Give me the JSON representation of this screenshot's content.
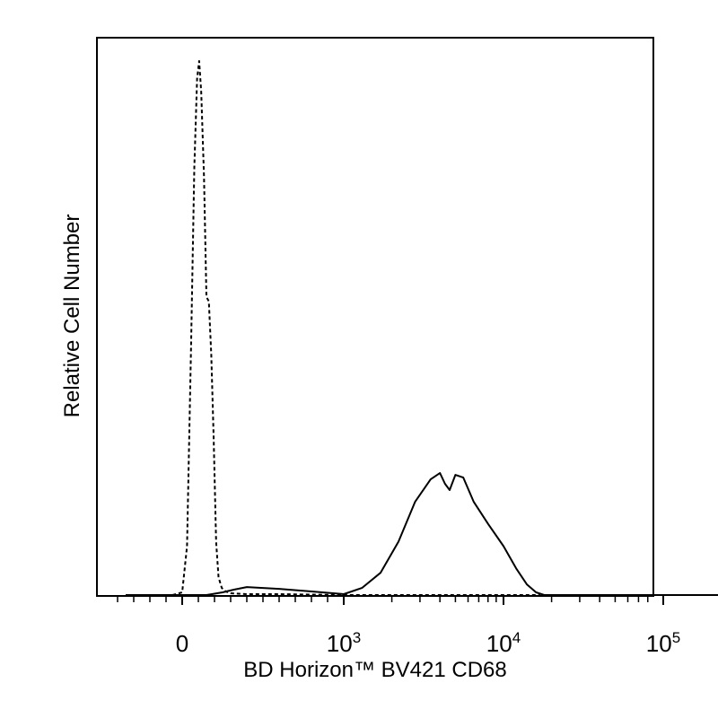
{
  "chart_data": {
    "type": "line",
    "title": "",
    "xlabel": "BD Horizon™ BV421 CD68",
    "ylabel": "Relative Cell Number",
    "x_scale": "biexponential",
    "xlim": [
      -400,
      250000
    ],
    "x_ticks": [
      {
        "value": 0,
        "label": "0",
        "exp": ""
      },
      {
        "value": 1000,
        "label": "10",
        "exp": "3"
      },
      {
        "value": 10000,
        "label": "10",
        "exp": "4"
      },
      {
        "value": 100000,
        "label": "10",
        "exp": "5"
      }
    ],
    "y_ticks": [],
    "grid": false,
    "legend": "none",
    "series": [
      {
        "style": "dashed",
        "color": "#000000",
        "points": [
          [
            -60,
            0
          ],
          [
            0,
            3
          ],
          [
            30,
            55
          ],
          [
            55,
            280
          ],
          [
            75,
            480
          ],
          [
            92,
            580
          ],
          [
            105,
            600
          ],
          [
            118,
            565
          ],
          [
            135,
            470
          ],
          [
            150,
            335
          ],
          [
            165,
            330
          ],
          [
            180,
            270
          ],
          [
            195,
            175
          ],
          [
            210,
            60
          ],
          [
            225,
            20
          ],
          [
            245,
            8
          ],
          [
            270,
            4
          ],
          [
            300,
            2
          ],
          [
            400,
            1
          ],
          [
            600,
            1
          ],
          [
            1000,
            0
          ],
          [
            10000,
            0
          ],
          [
            17000,
            0
          ]
        ]
      },
      {
        "style": "solid",
        "color": "#000000",
        "points": [
          [
            -350,
            0
          ],
          [
            150,
            0
          ],
          [
            250,
            3
          ],
          [
            320,
            6
          ],
          [
            400,
            9
          ],
          [
            500,
            8
          ],
          [
            600,
            7
          ],
          [
            800,
            4
          ],
          [
            1000,
            1
          ],
          [
            1300,
            8
          ],
          [
            1700,
            25
          ],
          [
            2200,
            60
          ],
          [
            2800,
            105
          ],
          [
            3500,
            130
          ],
          [
            4000,
            137
          ],
          [
            4300,
            125
          ],
          [
            4600,
            118
          ],
          [
            5000,
            135
          ],
          [
            5600,
            132
          ],
          [
            6500,
            105
          ],
          [
            8000,
            80
          ],
          [
            10000,
            55
          ],
          [
            12000,
            30
          ],
          [
            14000,
            12
          ],
          [
            16000,
            3
          ],
          [
            18000,
            0
          ],
          [
            250000,
            0
          ]
        ]
      }
    ]
  }
}
